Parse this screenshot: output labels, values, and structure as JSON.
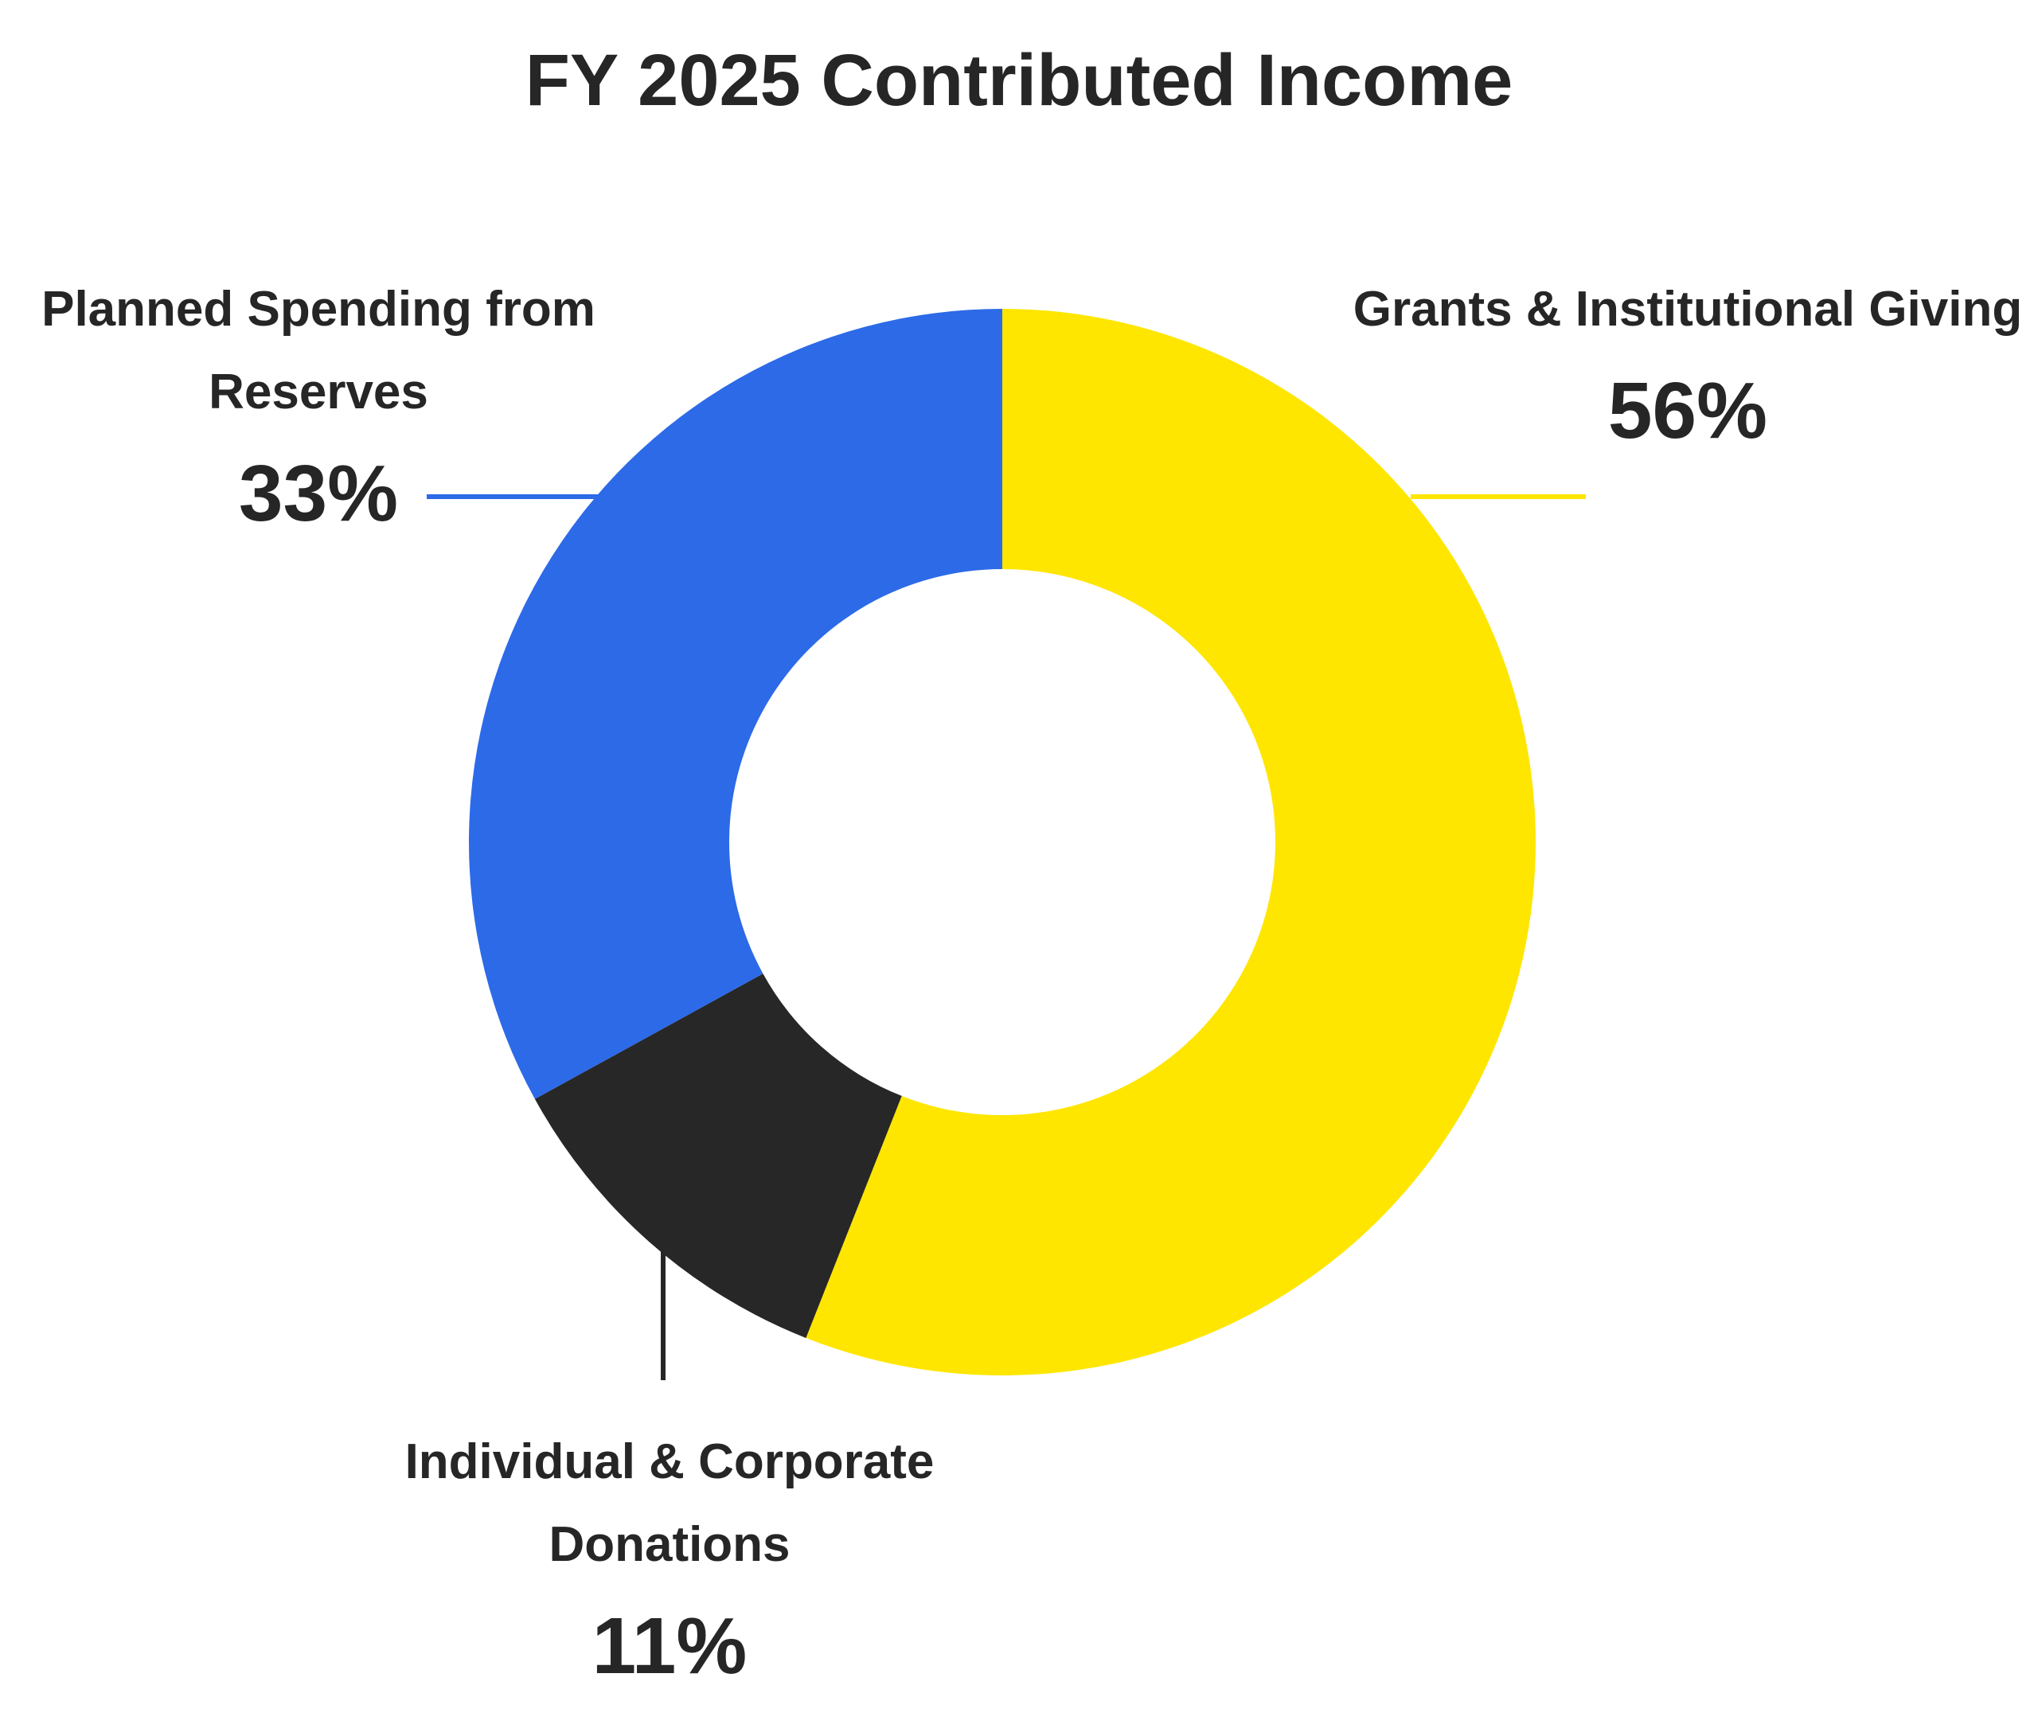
{
  "chart_data": {
    "type": "donut",
    "title": "FY 2025 Contributed Income",
    "categories": [
      "Grants & Institutional Giving",
      "Individual & Corporate Donations",
      "Planned Spending from Reserves"
    ],
    "values": [
      56,
      11,
      33
    ],
    "value_labels": [
      "56%",
      "11%",
      "33%"
    ],
    "colors": [
      "#fee600",
      "#272727",
      "#2c6ae8"
    ]
  }
}
